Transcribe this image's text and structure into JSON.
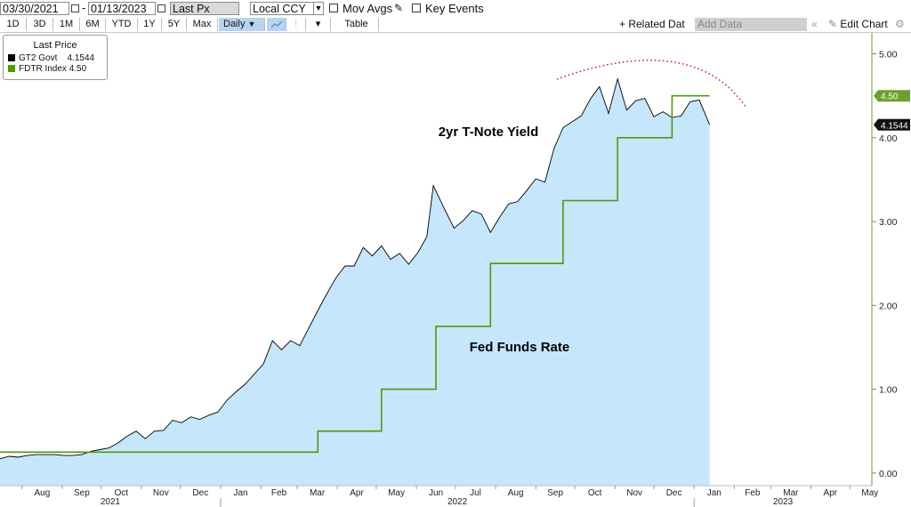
{
  "toolbar": {
    "start_date": "03/30/2021",
    "end_date": "01/13/2023",
    "price_field": "Last Px",
    "currency": "Local CCY",
    "mov_avgs_label": "Mov Avgs",
    "key_events_label": "Key Events",
    "periods": [
      "1D",
      "3D",
      "1M",
      "6M",
      "YTD",
      "1Y",
      "5Y",
      "Max"
    ],
    "frequency": "Daily",
    "table_label": "Table",
    "related_label": "+ Related Dat",
    "add_data_placeholder": "Add Data",
    "edit_chart_label": "Edit Chart"
  },
  "legend": {
    "title": "Last Price",
    "items": [
      {
        "name": "GT2 Govt",
        "value": "4.1544",
        "color": "#000000"
      },
      {
        "name": "FDTR Index",
        "value": "4.50",
        "color": "#4e9a06"
      }
    ]
  },
  "chart_data": {
    "type": "area",
    "annotations": [
      "2yr T-Note Yield",
      "Fed Funds Rate"
    ],
    "y_ticks": [
      "0.00",
      "1.00",
      "2.00",
      "3.00",
      "4.00",
      "5.00"
    ],
    "ylim": [
      -0.15,
      5.25
    ],
    "month_labels": [
      "Aug",
      "Sep",
      "Oct",
      "Nov",
      "Dec",
      "Jan",
      "Feb",
      "Mar",
      "Apr",
      "May",
      "Jun",
      "Jul",
      "Aug",
      "Sep",
      "Oct",
      "Nov",
      "Dec",
      "Jan",
      "Feb",
      "Mar",
      "Apr",
      "May"
    ],
    "year_labels": [
      "2021",
      "2022",
      "2023"
    ],
    "last_value_labels": {
      "GT2 Govt": "4.1544",
      "FDTR Index": "4.50"
    },
    "series": [
      {
        "name": "GT2 Govt",
        "color": "#000000",
        "fill": "#c6e6fc",
        "points": [
          [
            "2021-07-15",
            0.17
          ],
          [
            "2021-07-22",
            0.2
          ],
          [
            "2021-07-29",
            0.19
          ],
          [
            "2021-08-05",
            0.21
          ],
          [
            "2021-08-12",
            0.22
          ],
          [
            "2021-08-19",
            0.22
          ],
          [
            "2021-08-26",
            0.22
          ],
          [
            "2021-09-02",
            0.21
          ],
          [
            "2021-09-09",
            0.21
          ],
          [
            "2021-09-16",
            0.22
          ],
          [
            "2021-09-23",
            0.26
          ],
          [
            "2021-09-30",
            0.28
          ],
          [
            "2021-10-07",
            0.3
          ],
          [
            "2021-10-14",
            0.36
          ],
          [
            "2021-10-21",
            0.44
          ],
          [
            "2021-10-28",
            0.5
          ],
          [
            "2021-11-04",
            0.41
          ],
          [
            "2021-11-11",
            0.5
          ],
          [
            "2021-11-18",
            0.51
          ],
          [
            "2021-11-25",
            0.63
          ],
          [
            "2021-12-02",
            0.6
          ],
          [
            "2021-12-09",
            0.67
          ],
          [
            "2021-12-16",
            0.64
          ],
          [
            "2021-12-23",
            0.69
          ],
          [
            "2021-12-30",
            0.73
          ],
          [
            "2022-01-06",
            0.87
          ],
          [
            "2022-01-13",
            0.97
          ],
          [
            "2022-01-20",
            1.06
          ],
          [
            "2022-01-27",
            1.18
          ],
          [
            "2022-02-03",
            1.3
          ],
          [
            "2022-02-10",
            1.58
          ],
          [
            "2022-02-17",
            1.47
          ],
          [
            "2022-02-24",
            1.58
          ],
          [
            "2022-03-03",
            1.52
          ],
          [
            "2022-03-10",
            1.73
          ],
          [
            "2022-03-17",
            1.94
          ],
          [
            "2022-03-24",
            2.14
          ],
          [
            "2022-03-31",
            2.33
          ],
          [
            "2022-04-07",
            2.47
          ],
          [
            "2022-04-14",
            2.47
          ],
          [
            "2022-04-21",
            2.69
          ],
          [
            "2022-04-28",
            2.59
          ],
          [
            "2022-05-05",
            2.71
          ],
          [
            "2022-05-12",
            2.55
          ],
          [
            "2022-05-19",
            2.62
          ],
          [
            "2022-05-26",
            2.49
          ],
          [
            "2022-06-02",
            2.63
          ],
          [
            "2022-06-09",
            2.82
          ],
          [
            "2022-06-14",
            3.43
          ],
          [
            "2022-06-21",
            3.2
          ],
          [
            "2022-06-30",
            2.92
          ],
          [
            "2022-07-07",
            3.01
          ],
          [
            "2022-07-14",
            3.13
          ],
          [
            "2022-07-21",
            3.09
          ],
          [
            "2022-07-28",
            2.87
          ],
          [
            "2022-08-04",
            3.05
          ],
          [
            "2022-08-11",
            3.21
          ],
          [
            "2022-08-18",
            3.24
          ],
          [
            "2022-08-25",
            3.37
          ],
          [
            "2022-09-01",
            3.51
          ],
          [
            "2022-09-08",
            3.47
          ],
          [
            "2022-09-15",
            3.87
          ],
          [
            "2022-09-22",
            4.12
          ],
          [
            "2022-09-29",
            4.19
          ],
          [
            "2022-10-06",
            4.26
          ],
          [
            "2022-10-13",
            4.46
          ],
          [
            "2022-10-20",
            4.61
          ],
          [
            "2022-10-27",
            4.29
          ],
          [
            "2022-11-03",
            4.7
          ],
          [
            "2022-11-10",
            4.33
          ],
          [
            "2022-11-17",
            4.44
          ],
          [
            "2022-11-24",
            4.47
          ],
          [
            "2022-12-01",
            4.25
          ],
          [
            "2022-12-08",
            4.31
          ],
          [
            "2022-12-15",
            4.24
          ],
          [
            "2022-12-22",
            4.26
          ],
          [
            "2022-12-29",
            4.43
          ],
          [
            "2023-01-05",
            4.45
          ],
          [
            "2023-01-13",
            4.1544
          ]
        ]
      },
      {
        "name": "FDTR Index",
        "color": "#4e9a06",
        "step": true,
        "points": [
          [
            "2021-07-15",
            0.25
          ],
          [
            "2022-03-17",
            0.5
          ],
          [
            "2022-05-05",
            1.0
          ],
          [
            "2022-06-16",
            1.75
          ],
          [
            "2022-07-28",
            2.5
          ],
          [
            "2022-09-22",
            3.25
          ],
          [
            "2022-11-03",
            4.0
          ],
          [
            "2022-12-15",
            4.5
          ],
          [
            "2023-01-13",
            4.5
          ]
        ]
      }
    ],
    "projection": {
      "style": "dotted",
      "color": "#d81e1e"
    }
  }
}
